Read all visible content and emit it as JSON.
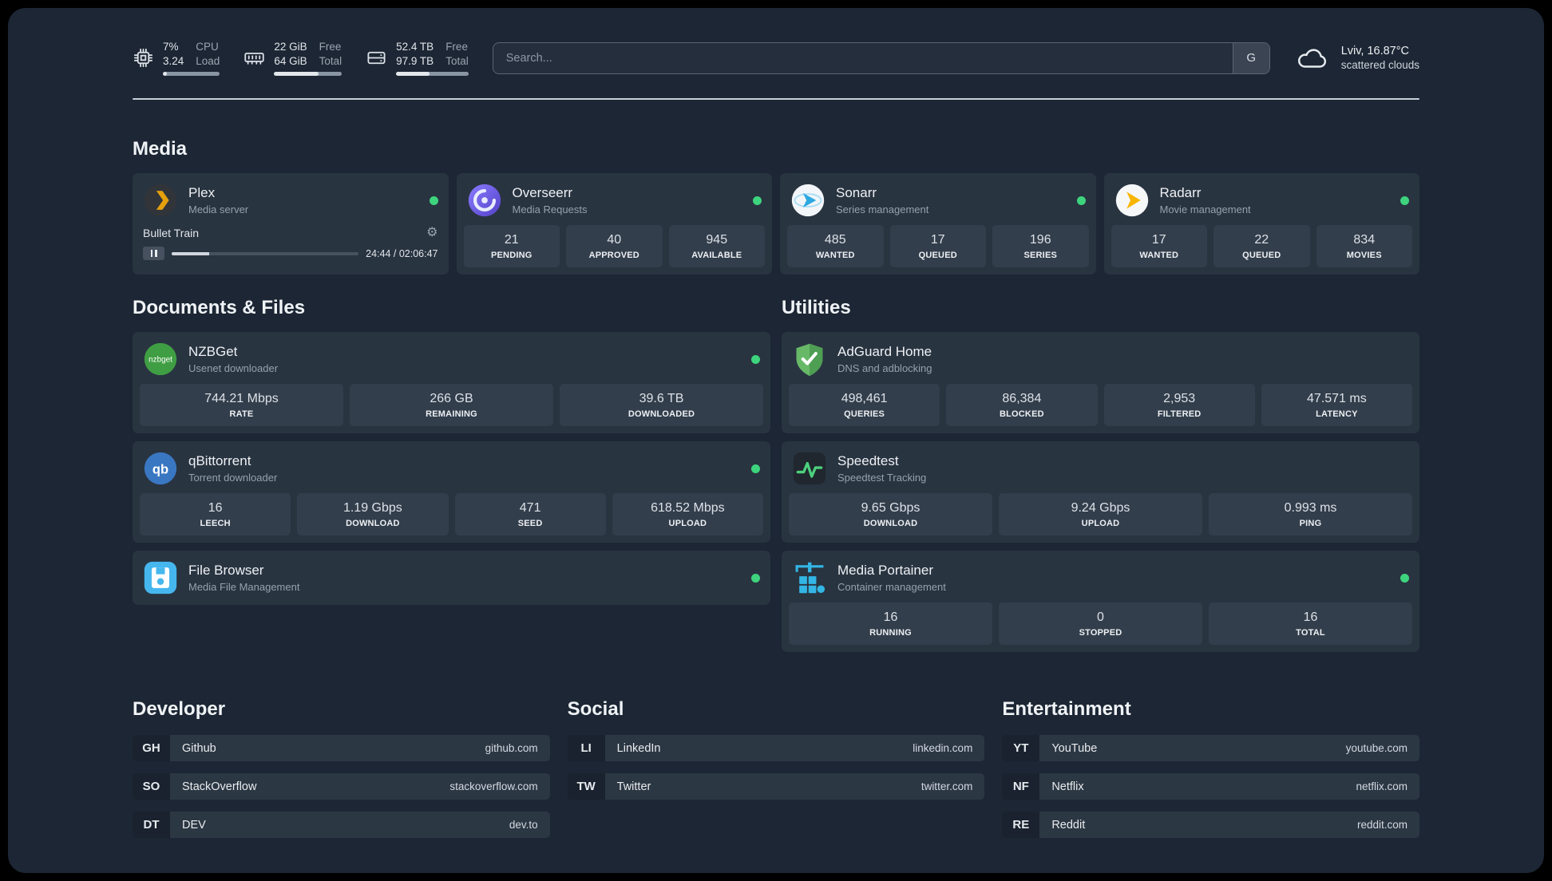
{
  "colors": {
    "status_green": "#3ed47e",
    "plex_amber": "#e5a00d",
    "panel_bg": "#1c2634",
    "card_bg": "#293441"
  },
  "icons": {
    "gear": "⚙"
  },
  "topbar": {
    "cpu": {
      "value_top": "7%",
      "label_top": "CPU",
      "value_bottom": "3.24",
      "label_bottom": "Load",
      "percent": 7
    },
    "memory": {
      "value_top": "22 GiB",
      "label_top": "Free",
      "value_bottom": "64 GiB",
      "label_bottom": "Total",
      "percent": 66
    },
    "disk": {
      "value_top": "52.4 TB",
      "label_top": "Free",
      "value_bottom": "97.9 TB",
      "label_bottom": "Total",
      "percent": 46
    },
    "search": {
      "placeholder": "Search...",
      "button_label": "G"
    },
    "weather": {
      "location": "Lviv, 16.87°C",
      "condition": "scattered clouds"
    }
  },
  "sections": {
    "media": {
      "title": "Media",
      "cards": [
        {
          "name": "Plex",
          "desc": "Media server",
          "player": {
            "track": "Bullet Train",
            "time": "24:44 / 02:06:47",
            "progress": 20
          }
        },
        {
          "name": "Overseerr",
          "desc": "Media Requests",
          "stats": [
            {
              "value": "21",
              "label": "PENDING"
            },
            {
              "value": "40",
              "label": "APPROVED"
            },
            {
              "value": "945",
              "label": "AVAILABLE"
            }
          ]
        },
        {
          "name": "Sonarr",
          "desc": "Series management",
          "stats": [
            {
              "value": "485",
              "label": "WANTED"
            },
            {
              "value": "17",
              "label": "QUEUED"
            },
            {
              "value": "196",
              "label": "SERIES"
            }
          ]
        },
        {
          "name": "Radarr",
          "desc": "Movie management",
          "stats": [
            {
              "value": "17",
              "label": "WANTED"
            },
            {
              "value": "22",
              "label": "QUEUED"
            },
            {
              "value": "834",
              "label": "MOVIES"
            }
          ]
        }
      ]
    },
    "documents": {
      "title": "Documents & Files",
      "cards": [
        {
          "name": "NZBGet",
          "desc": "Usenet downloader",
          "icon_text": "nzbget",
          "stats": [
            {
              "value": "744.21 Mbps",
              "label": "RATE"
            },
            {
              "value": "266 GB",
              "label": "REMAINING"
            },
            {
              "value": "39.6 TB",
              "label": "DOWNLOADED"
            }
          ]
        },
        {
          "name": "qBittorrent",
          "desc": "Torrent downloader",
          "icon_text": "qb",
          "stats": [
            {
              "value": "16",
              "label": "LEECH"
            },
            {
              "value": "1.19 Gbps",
              "label": "DOWNLOAD"
            },
            {
              "value": "471",
              "label": "SEED"
            },
            {
              "value": "618.52 Mbps",
              "label": "UPLOAD"
            }
          ]
        },
        {
          "name": "File Browser",
          "desc": "Media File Management"
        }
      ]
    },
    "utilities": {
      "title": "Utilities",
      "cards": [
        {
          "name": "AdGuard Home",
          "desc": "DNS and adblocking",
          "stats": [
            {
              "value": "498,461",
              "label": "QUERIES"
            },
            {
              "value": "86,384",
              "label": "BLOCKED"
            },
            {
              "value": "2,953",
              "label": "FILTERED"
            },
            {
              "value": "47.571 ms",
              "label": "LATENCY"
            }
          ]
        },
        {
          "name": "Speedtest",
          "desc": "Speedtest Tracking",
          "stats": [
            {
              "value": "9.65 Gbps",
              "label": "DOWNLOAD"
            },
            {
              "value": "9.24 Gbps",
              "label": "UPLOAD"
            },
            {
              "value": "0.993 ms",
              "label": "PING"
            }
          ]
        },
        {
          "name": "Media Portainer",
          "desc": "Container management",
          "stats": [
            {
              "value": "16",
              "label": "RUNNING"
            },
            {
              "value": "0",
              "label": "STOPPED"
            },
            {
              "value": "16",
              "label": "TOTAL"
            }
          ]
        }
      ]
    },
    "developer": {
      "title": "Developer",
      "links": [
        {
          "abbr": "GH",
          "label": "Github",
          "url": "github.com"
        },
        {
          "abbr": "SO",
          "label": "StackOverflow",
          "url": "stackoverflow.com"
        },
        {
          "abbr": "DT",
          "label": "DEV",
          "url": "dev.to"
        }
      ]
    },
    "social": {
      "title": "Social",
      "links": [
        {
          "abbr": "LI",
          "label": "LinkedIn",
          "url": "linkedin.com"
        },
        {
          "abbr": "TW",
          "label": "Twitter",
          "url": "twitter.com"
        }
      ]
    },
    "entertainment": {
      "title": "Entertainment",
      "links": [
        {
          "abbr": "YT",
          "label": "YouTube",
          "url": "youtube.com"
        },
        {
          "abbr": "NF",
          "label": "Netflix",
          "url": "netflix.com"
        },
        {
          "abbr": "RE",
          "label": "Reddit",
          "url": "reddit.com"
        }
      ]
    }
  }
}
